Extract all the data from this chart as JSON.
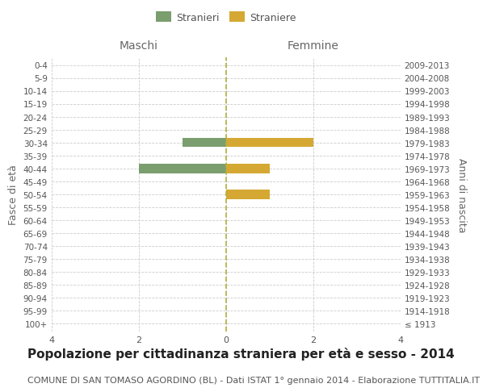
{
  "age_groups": [
    "100+",
    "95-99",
    "90-94",
    "85-89",
    "80-84",
    "75-79",
    "70-74",
    "65-69",
    "60-64",
    "55-59",
    "50-54",
    "45-49",
    "40-44",
    "35-39",
    "30-34",
    "25-29",
    "20-24",
    "15-19",
    "10-14",
    "5-9",
    "0-4"
  ],
  "birth_years": [
    "≤ 1913",
    "1914-1918",
    "1919-1923",
    "1924-1928",
    "1929-1933",
    "1934-1938",
    "1939-1943",
    "1944-1948",
    "1949-1953",
    "1954-1958",
    "1959-1963",
    "1964-1968",
    "1969-1973",
    "1974-1978",
    "1979-1983",
    "1984-1988",
    "1989-1993",
    "1994-1998",
    "1999-2003",
    "2004-2008",
    "2009-2013"
  ],
  "males": [
    0,
    0,
    0,
    0,
    0,
    0,
    0,
    0,
    0,
    0,
    0,
    0,
    -2,
    0,
    -1,
    0,
    0,
    0,
    0,
    0,
    0
  ],
  "females": [
    0,
    0,
    0,
    0,
    0,
    0,
    0,
    0,
    0,
    0,
    1,
    0,
    1,
    0,
    2,
    0,
    0,
    0,
    0,
    0,
    0
  ],
  "male_color": "#7a9e6e",
  "female_color": "#d4a832",
  "xlim": [
    -4,
    4
  ],
  "xticks": [
    -4,
    -2,
    0,
    2,
    4
  ],
  "title": "Popolazione per cittadinanza straniera per età e sesso - 2014",
  "subtitle": "COMUNE DI SAN TOMASO AGORDINO (BL) - Dati ISTAT 1° gennaio 2014 - Elaborazione TUTTITALIA.IT",
  "left_label": "Maschi",
  "right_label": "Femmine",
  "ylabel": "Fasce di età",
  "ylabel_right": "Anni di nascita",
  "legend_male": "Stranieri",
  "legend_female": "Straniere",
  "background_color": "#ffffff",
  "grid_color": "#cccccc",
  "bar_height": 0.7,
  "vline_color": "#b0b040",
  "title_fontsize": 11,
  "subtitle_fontsize": 8,
  "label_color": "#888888"
}
